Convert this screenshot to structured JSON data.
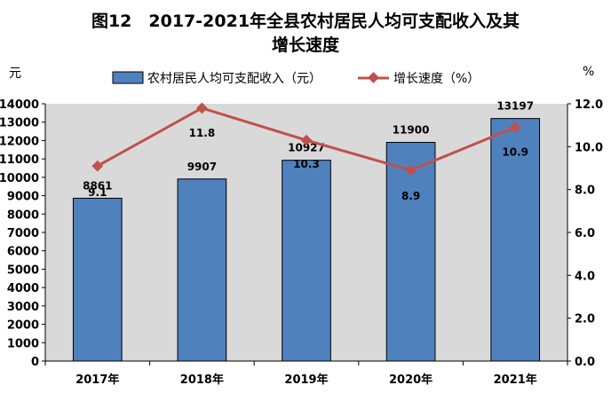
{
  "title_lines": [
    "图12　2017-2021年全县农村居民人均可支配收入及其",
    "增长速度"
  ],
  "left_unit": "元",
  "right_unit": "%",
  "legend": {
    "bar_label": "农村居民人均可支配收入（元）",
    "line_label": "增长速度（%）"
  },
  "colors": {
    "bar": "#4f81bd",
    "line": "#c0504d",
    "plot_bg": "#d9d9d9"
  },
  "chart_data": {
    "type": "bar",
    "categories": [
      "2017年",
      "2018年",
      "2019年",
      "2020年",
      "2021年"
    ],
    "series": [
      {
        "name": "农村居民人均可支配收入（元）",
        "type": "bar",
        "axis": "left",
        "values": [
          8861,
          9907,
          10927,
          11900,
          13197
        ]
      },
      {
        "name": "增长速度（%）",
        "type": "line",
        "axis": "right",
        "values": [
          9.1,
          11.8,
          10.3,
          8.9,
          10.9
        ]
      }
    ],
    "y_left": {
      "min": 0,
      "max": 14000,
      "step": 1000,
      "label": "元"
    },
    "y_right": {
      "min": 0,
      "max": 12,
      "step": 2,
      "label": "%",
      "decimals": 1
    },
    "bar_labels": [
      "8861",
      "9907",
      "10927",
      "11900",
      "13197"
    ],
    "line_labels": [
      "9.1",
      "11.8",
      "10.3",
      "8.9",
      "10.9"
    ],
    "legend_position": "top",
    "grid": false
  }
}
